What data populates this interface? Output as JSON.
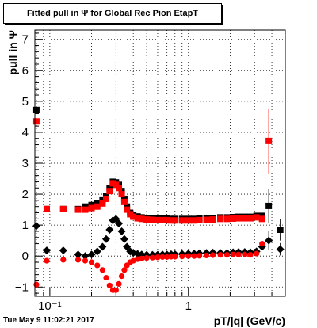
{
  "page": {
    "title": "Fitted pull in  Ψ  for Global Rec Pion EtapT",
    "timestamp": "Tue May  9 11:02:21 2017"
  },
  "chart_data": {
    "type": "scatter",
    "title": "Fitted pull in  Ψ  for Global Rec Pion EtapT",
    "xlabel": "pT/|q| (GeV/c)",
    "ylabel": "pull in  Ψ",
    "x_scale": "log",
    "xlim": [
      0.078,
      5.0
    ],
    "ylim": [
      -1.3,
      7.3
    ],
    "grid": true,
    "x_ticks": [
      {
        "value": 0.1,
        "label": "10⁻¹"
      },
      {
        "value": 1,
        "label": "1"
      }
    ],
    "y_ticks": [
      {
        "value": -1,
        "label": "−1"
      },
      {
        "value": 0,
        "label": "0"
      },
      {
        "value": 1,
        "label": "1"
      },
      {
        "value": 2,
        "label": "2"
      },
      {
        "value": 3,
        "label": "3"
      },
      {
        "value": 4,
        "label": "4"
      },
      {
        "value": 5,
        "label": "5"
      },
      {
        "value": 6,
        "label": "6"
      },
      {
        "value": 7,
        "label": "7"
      }
    ],
    "series": [
      {
        "marker": "square",
        "color": "#000000",
        "points": [
          {
            "x": 0.08,
            "y": 4.72
          },
          {
            "x": 0.095,
            "y": 1.52
          },
          {
            "x": 0.125,
            "y": 1.52
          },
          {
            "x": 0.16,
            "y": 1.52
          },
          {
            "x": 0.18,
            "y": 1.6
          },
          {
            "x": 0.2,
            "y": 1.65
          },
          {
            "x": 0.22,
            "y": 1.7
          },
          {
            "x": 0.24,
            "y": 1.8
          },
          {
            "x": 0.255,
            "y": 1.95
          },
          {
            "x": 0.27,
            "y": 2.2
          },
          {
            "x": 0.285,
            "y": 2.4
          },
          {
            "x": 0.3,
            "y": 2.38
          },
          {
            "x": 0.315,
            "y": 2.3
          },
          {
            "x": 0.33,
            "y": 2.1
          },
          {
            "x": 0.345,
            "y": 1.85
          },
          {
            "x": 0.36,
            "y": 1.6
          },
          {
            "x": 0.38,
            "y": 1.4
          },
          {
            "x": 0.4,
            "y": 1.32
          },
          {
            "x": 0.43,
            "y": 1.28
          },
          {
            "x": 0.46,
            "y": 1.25
          },
          {
            "x": 0.5,
            "y": 1.23
          },
          {
            "x": 0.55,
            "y": 1.22
          },
          {
            "x": 0.6,
            "y": 1.21
          },
          {
            "x": 0.65,
            "y": 1.21
          },
          {
            "x": 0.7,
            "y": 1.21
          },
          {
            "x": 0.75,
            "y": 1.2
          },
          {
            "x": 0.8,
            "y": 1.2
          },
          {
            "x": 0.9,
            "y": 1.2
          },
          {
            "x": 1.0,
            "y": 1.2
          },
          {
            "x": 1.1,
            "y": 1.2
          },
          {
            "x": 1.2,
            "y": 1.21
          },
          {
            "x": 1.35,
            "y": 1.22
          },
          {
            "x": 1.5,
            "y": 1.23
          },
          {
            "x": 1.7,
            "y": 1.25
          },
          {
            "x": 1.9,
            "y": 1.25
          },
          {
            "x": 2.1,
            "y": 1.26
          },
          {
            "x": 2.3,
            "y": 1.27
          },
          {
            "x": 2.55,
            "y": 1.27
          },
          {
            "x": 2.8,
            "y": 1.27
          },
          {
            "x": 3.1,
            "y": 1.3
          },
          {
            "x": 3.4,
            "y": 1.3
          },
          {
            "x": 3.8,
            "y": 1.62,
            "err": 0.55
          },
          {
            "x": 4.6,
            "y": 0.85,
            "err": 0.35
          }
        ]
      },
      {
        "marker": "square",
        "color": "#ff0000",
        "points": [
          {
            "x": 0.08,
            "y": 4.35
          },
          {
            "x": 0.095,
            "y": 1.52
          },
          {
            "x": 0.125,
            "y": 1.52
          },
          {
            "x": 0.16,
            "y": 1.5
          },
          {
            "x": 0.18,
            "y": 1.5
          },
          {
            "x": 0.2,
            "y": 1.55
          },
          {
            "x": 0.22,
            "y": 1.6
          },
          {
            "x": 0.24,
            "y": 1.7
          },
          {
            "x": 0.255,
            "y": 1.85
          },
          {
            "x": 0.27,
            "y": 2.1
          },
          {
            "x": 0.285,
            "y": 2.35
          },
          {
            "x": 0.3,
            "y": 2.3
          },
          {
            "x": 0.315,
            "y": 2.2
          },
          {
            "x": 0.33,
            "y": 2.0
          },
          {
            "x": 0.345,
            "y": 1.75
          },
          {
            "x": 0.36,
            "y": 1.5
          },
          {
            "x": 0.38,
            "y": 1.35
          },
          {
            "x": 0.4,
            "y": 1.27
          },
          {
            "x": 0.43,
            "y": 1.22
          },
          {
            "x": 0.46,
            "y": 1.2
          },
          {
            "x": 0.5,
            "y": 1.18
          },
          {
            "x": 0.55,
            "y": 1.17
          },
          {
            "x": 0.6,
            "y": 1.16
          },
          {
            "x": 0.65,
            "y": 1.16
          },
          {
            "x": 0.7,
            "y": 1.16
          },
          {
            "x": 0.75,
            "y": 1.15
          },
          {
            "x": 0.8,
            "y": 1.15
          },
          {
            "x": 0.9,
            "y": 1.15
          },
          {
            "x": 1.0,
            "y": 1.15
          },
          {
            "x": 1.1,
            "y": 1.15
          },
          {
            "x": 1.2,
            "y": 1.16
          },
          {
            "x": 1.35,
            "y": 1.17
          },
          {
            "x": 1.5,
            "y": 1.18
          },
          {
            "x": 1.7,
            "y": 1.2
          },
          {
            "x": 1.9,
            "y": 1.2
          },
          {
            "x": 2.1,
            "y": 1.21
          },
          {
            "x": 2.3,
            "y": 1.22
          },
          {
            "x": 2.55,
            "y": 1.22
          },
          {
            "x": 2.8,
            "y": 1.22
          },
          {
            "x": 3.1,
            "y": 1.25
          },
          {
            "x": 3.4,
            "y": 1.2
          },
          {
            "x": 3.8,
            "y": 3.72,
            "err": 1.05
          }
        ]
      },
      {
        "marker": "diamond",
        "color": "#000000",
        "points": [
          {
            "x": 0.08,
            "y": 0.97
          },
          {
            "x": 0.095,
            "y": 0.18
          },
          {
            "x": 0.125,
            "y": 0.18
          },
          {
            "x": 0.16,
            "y": 0.05
          },
          {
            "x": 0.18,
            "y": 0.0
          },
          {
            "x": 0.2,
            "y": 0.05
          },
          {
            "x": 0.22,
            "y": 0.15
          },
          {
            "x": 0.24,
            "y": 0.3
          },
          {
            "x": 0.255,
            "y": 0.55
          },
          {
            "x": 0.27,
            "y": 0.85
          },
          {
            "x": 0.285,
            "y": 1.15
          },
          {
            "x": 0.3,
            "y": 1.2
          },
          {
            "x": 0.315,
            "y": 1.05
          },
          {
            "x": 0.33,
            "y": 0.8
          },
          {
            "x": 0.345,
            "y": 0.55
          },
          {
            "x": 0.36,
            "y": 0.3
          },
          {
            "x": 0.38,
            "y": 0.15
          },
          {
            "x": 0.4,
            "y": 0.1
          },
          {
            "x": 0.43,
            "y": 0.07
          },
          {
            "x": 0.46,
            "y": 0.05
          },
          {
            "x": 0.5,
            "y": 0.04
          },
          {
            "x": 0.55,
            "y": 0.04
          },
          {
            "x": 0.6,
            "y": 0.04
          },
          {
            "x": 0.65,
            "y": 0.05
          },
          {
            "x": 0.7,
            "y": 0.05
          },
          {
            "x": 0.75,
            "y": 0.06
          },
          {
            "x": 0.8,
            "y": 0.06
          },
          {
            "x": 0.9,
            "y": 0.07
          },
          {
            "x": 1.0,
            "y": 0.08
          },
          {
            "x": 1.1,
            "y": 0.08
          },
          {
            "x": 1.2,
            "y": 0.09
          },
          {
            "x": 1.35,
            "y": 0.1
          },
          {
            "x": 1.5,
            "y": 0.11
          },
          {
            "x": 1.7,
            "y": 0.1
          },
          {
            "x": 1.9,
            "y": 0.1
          },
          {
            "x": 2.1,
            "y": 0.12
          },
          {
            "x": 2.3,
            "y": 0.13
          },
          {
            "x": 2.55,
            "y": 0.13
          },
          {
            "x": 2.8,
            "y": 0.12
          },
          {
            "x": 3.1,
            "y": 0.15
          },
          {
            "x": 3.4,
            "y": 0.3
          },
          {
            "x": 3.8,
            "y": 0.5,
            "err": 0.3
          },
          {
            "x": 4.6,
            "y": 0.22,
            "err": 0.2
          }
        ]
      },
      {
        "marker": "circle",
        "color": "#ff0000",
        "points": [
          {
            "x": 0.08,
            "y": -0.92
          },
          {
            "x": 0.095,
            "y": -0.15
          },
          {
            "x": 0.125,
            "y": -0.12
          },
          {
            "x": 0.16,
            "y": -0.12
          },
          {
            "x": 0.18,
            "y": -0.15
          },
          {
            "x": 0.2,
            "y": -0.2
          },
          {
            "x": 0.22,
            "y": -0.3
          },
          {
            "x": 0.24,
            "y": -0.45
          },
          {
            "x": 0.255,
            "y": -0.7
          },
          {
            "x": 0.27,
            "y": -0.95
          },
          {
            "x": 0.285,
            "y": -1.1
          },
          {
            "x": 0.3,
            "y": -1.1
          },
          {
            "x": 0.315,
            "y": -0.9
          },
          {
            "x": 0.33,
            "y": -0.65
          },
          {
            "x": 0.345,
            "y": -0.45
          },
          {
            "x": 0.36,
            "y": -0.3
          },
          {
            "x": 0.38,
            "y": -0.2
          },
          {
            "x": 0.4,
            "y": -0.15
          },
          {
            "x": 0.43,
            "y": -0.1
          },
          {
            "x": 0.46,
            "y": -0.08
          },
          {
            "x": 0.5,
            "y": -0.06
          },
          {
            "x": 0.55,
            "y": -0.05
          },
          {
            "x": 0.6,
            "y": -0.04
          },
          {
            "x": 0.65,
            "y": -0.03
          },
          {
            "x": 0.7,
            "y": -0.03
          },
          {
            "x": 0.75,
            "y": -0.02
          },
          {
            "x": 0.8,
            "y": -0.02
          },
          {
            "x": 0.9,
            "y": -0.01
          },
          {
            "x": 1.0,
            "y": 0.0
          },
          {
            "x": 1.1,
            "y": 0.0
          },
          {
            "x": 1.2,
            "y": 0.01
          },
          {
            "x": 1.35,
            "y": 0.02
          },
          {
            "x": 1.5,
            "y": 0.03
          },
          {
            "x": 1.7,
            "y": 0.04
          },
          {
            "x": 1.9,
            "y": 0.04
          },
          {
            "x": 2.1,
            "y": 0.05
          },
          {
            "x": 2.3,
            "y": 0.05
          },
          {
            "x": 2.55,
            "y": 0.05
          },
          {
            "x": 2.8,
            "y": 0.04
          },
          {
            "x": 3.1,
            "y": 0.08
          },
          {
            "x": 3.4,
            "y": 0.4
          }
        ]
      }
    ]
  }
}
